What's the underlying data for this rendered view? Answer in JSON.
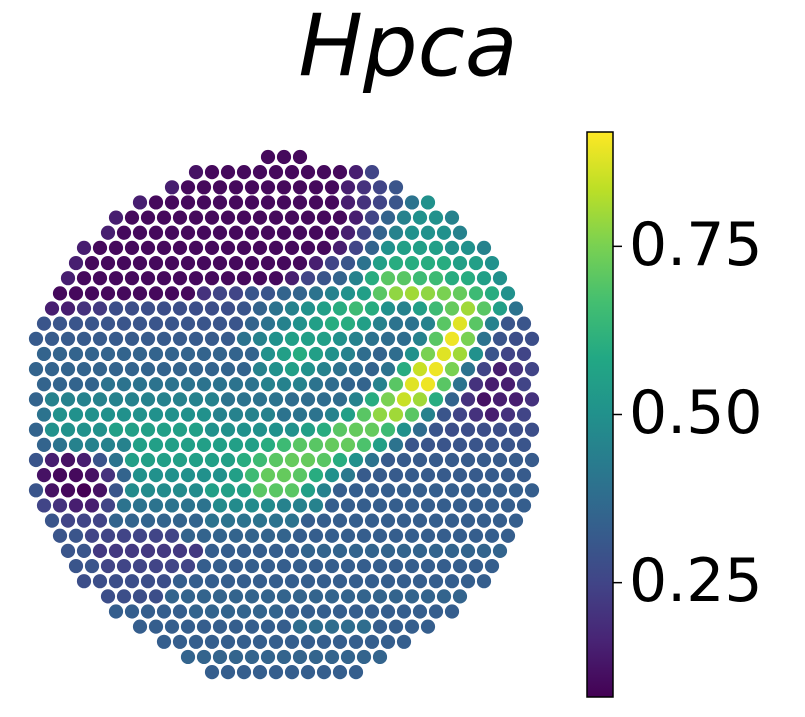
{
  "chart_data": {
    "type": "spatial",
    "title": "Hpca",
    "colormap": "viridis",
    "clim": [
      0.08,
      0.92
    ],
    "colorbar_ticks": [
      0.25,
      {
        "value": 0.5,
        "label": "0.50"
      },
      0.75
    ],
    "values": [
      [
        0.1,
        0.1,
        0.1
      ],
      [
        0.12,
        0.1,
        0.1,
        0.1,
        0.1,
        0.1,
        0.1,
        0.1,
        0.1,
        0.1,
        0.15,
        0.25
      ],
      [
        0.15,
        0.1,
        0.1,
        0.1,
        0.1,
        0.1,
        0.1,
        0.1,
        0.1,
        0.1,
        0.1,
        0.15,
        0.2,
        0.25,
        0.3
      ],
      [
        0.15,
        0.1,
        0.1,
        0.1,
        0.1,
        0.1,
        0.1,
        0.1,
        0.1,
        0.1,
        0.1,
        0.1,
        0.1,
        0.15,
        0.2,
        0.25,
        0.3,
        0.4,
        0.5
      ],
      [
        0.15,
        0.1,
        0.1,
        0.1,
        0.1,
        0.1,
        0.1,
        0.1,
        0.1,
        0.1,
        0.1,
        0.1,
        0.1,
        0.1,
        0.1,
        0.15,
        0.25,
        0.35,
        0.45,
        0.5,
        0.5,
        0.45
      ],
      [
        0.15,
        0.1,
        0.1,
        0.1,
        0.1,
        0.1,
        0.1,
        0.1,
        0.1,
        0.1,
        0.1,
        0.1,
        0.1,
        0.1,
        0.1,
        0.15,
        0.25,
        0.35,
        0.45,
        0.5,
        0.5,
        0.5,
        0.45
      ],
      [
        0.15,
        0.1,
        0.1,
        0.1,
        0.1,
        0.1,
        0.1,
        0.1,
        0.1,
        0.1,
        0.1,
        0.1,
        0.1,
        0.1,
        0.1,
        0.1,
        0.15,
        0.25,
        0.35,
        0.5,
        0.55,
        0.55,
        0.55,
        0.5,
        0.5,
        0.45
      ],
      [
        0.15,
        0.1,
        0.1,
        0.1,
        0.1,
        0.1,
        0.1,
        0.1,
        0.1,
        0.1,
        0.1,
        0.1,
        0.1,
        0.1,
        0.1,
        0.15,
        0.25,
        0.3,
        0.4,
        0.55,
        0.6,
        0.6,
        0.6,
        0.6,
        0.55,
        0.55,
        0.5
      ],
      [
        0.15,
        0.1,
        0.1,
        0.1,
        0.1,
        0.1,
        0.1,
        0.1,
        0.1,
        0.1,
        0.1,
        0.1,
        0.1,
        0.1,
        0.15,
        0.25,
        0.3,
        0.35,
        0.45,
        0.6,
        0.7,
        0.7,
        0.65,
        0.65,
        0.6,
        0.6,
        0.55,
        0.5
      ],
      [
        0.1,
        0.1,
        0.1,
        0.1,
        0.1,
        0.1,
        0.1,
        0.1,
        0.1,
        0.2,
        0.25,
        0.25,
        0.3,
        0.3,
        0.35,
        0.35,
        0.4,
        0.45,
        0.5,
        0.55,
        0.7,
        0.78,
        0.8,
        0.78,
        0.75,
        0.72,
        0.65,
        0.6,
        0.5
      ],
      [
        0.15,
        0.15,
        0.2,
        0.22,
        0.28,
        0.28,
        0.28,
        0.28,
        0.28,
        0.28,
        0.28,
        0.28,
        0.3,
        0.35,
        0.4,
        0.45,
        0.5,
        0.55,
        0.6,
        0.65,
        0.6,
        0.5,
        0.45,
        0.55,
        0.65,
        0.72,
        0.8,
        0.7,
        0.55,
        0.4
      ],
      [
        0.3,
        0.3,
        0.3,
        0.3,
        0.3,
        0.3,
        0.3,
        0.3,
        0.3,
        0.3,
        0.3,
        0.3,
        0.3,
        0.35,
        0.4,
        0.45,
        0.5,
        0.55,
        0.6,
        0.6,
        0.55,
        0.45,
        0.4,
        0.4,
        0.45,
        0.7,
        0.88,
        0.7,
        0.45,
        0.3,
        0.3
      ],
      [
        0.32,
        0.32,
        0.32,
        0.32,
        0.32,
        0.32,
        0.32,
        0.32,
        0.32,
        0.32,
        0.32,
        0.32,
        0.32,
        0.4,
        0.45,
        0.5,
        0.55,
        0.55,
        0.55,
        0.5,
        0.45,
        0.4,
        0.38,
        0.38,
        0.45,
        0.7,
        0.9,
        0.75,
        0.4,
        0.3,
        0.28,
        0.28
      ],
      [
        0.35,
        0.35,
        0.35,
        0.35,
        0.35,
        0.35,
        0.35,
        0.35,
        0.35,
        0.35,
        0.35,
        0.35,
        0.35,
        0.35,
        0.5,
        0.55,
        0.6,
        0.55,
        0.5,
        0.45,
        0.38,
        0.35,
        0.38,
        0.5,
        0.75,
        0.88,
        0.8,
        0.5,
        0.3,
        0.25,
        0.25
      ],
      [
        0.35,
        0.35,
        0.35,
        0.35,
        0.35,
        0.35,
        0.35,
        0.35,
        0.35,
        0.35,
        0.35,
        0.35,
        0.35,
        0.35,
        0.45,
        0.5,
        0.55,
        0.5,
        0.45,
        0.4,
        0.38,
        0.35,
        0.4,
        0.6,
        0.85,
        0.9,
        0.75,
        0.4,
        0.25,
        0.15,
        0.2,
        0.25
      ],
      [
        0.35,
        0.35,
        0.35,
        0.35,
        0.4,
        0.4,
        0.4,
        0.4,
        0.4,
        0.4,
        0.4,
        0.4,
        0.4,
        0.4,
        0.45,
        0.45,
        0.45,
        0.4,
        0.38,
        0.35,
        0.35,
        0.45,
        0.7,
        0.88,
        0.9,
        0.7,
        0.4,
        0.2,
        0.15,
        0.15,
        0.25
      ],
      [
        0.35,
        0.45,
        0.45,
        0.45,
        0.45,
        0.45,
        0.45,
        0.45,
        0.45,
        0.45,
        0.45,
        0.45,
        0.4,
        0.4,
        0.4,
        0.4,
        0.38,
        0.38,
        0.38,
        0.38,
        0.45,
        0.6,
        0.75,
        0.85,
        0.8,
        0.6,
        0.35,
        0.2,
        0.12,
        0.15,
        0.15,
        0.2
      ],
      [
        0.4,
        0.5,
        0.5,
        0.5,
        0.5,
        0.5,
        0.5,
        0.5,
        0.5,
        0.5,
        0.5,
        0.45,
        0.45,
        0.45,
        0.45,
        0.4,
        0.4,
        0.4,
        0.45,
        0.55,
        0.7,
        0.78,
        0.8,
        0.7,
        0.45,
        0.3,
        0.25,
        0.2,
        0.15,
        0.2,
        0.25
      ],
      [
        0.35,
        0.5,
        0.5,
        0.5,
        0.5,
        0.55,
        0.55,
        0.55,
        0.55,
        0.55,
        0.55,
        0.5,
        0.5,
        0.5,
        0.5,
        0.5,
        0.5,
        0.55,
        0.6,
        0.7,
        0.72,
        0.72,
        0.65,
        0.5,
        0.38,
        0.3,
        0.28,
        0.28,
        0.28,
        0.28,
        0.28,
        0.28
      ],
      [
        0.35,
        0.4,
        0.45,
        0.45,
        0.45,
        0.45,
        0.55,
        0.55,
        0.55,
        0.55,
        0.55,
        0.55,
        0.55,
        0.55,
        0.6,
        0.65,
        0.7,
        0.7,
        0.72,
        0.72,
        0.68,
        0.55,
        0.4,
        0.3,
        0.3,
        0.3,
        0.3,
        0.3,
        0.3,
        0.3,
        0.3
      ],
      [
        0.3,
        0.15,
        0.12,
        0.15,
        0.3,
        0.4,
        0.55,
        0.55,
        0.55,
        0.55,
        0.55,
        0.55,
        0.55,
        0.6,
        0.65,
        0.7,
        0.72,
        0.72,
        0.7,
        0.6,
        0.5,
        0.4,
        0.32,
        0.32,
        0.32,
        0.32,
        0.32,
        0.32,
        0.32,
        0.32,
        0.32,
        0.32
      ],
      [
        0.12,
        0.1,
        0.1,
        0.12,
        0.2,
        0.35,
        0.5,
        0.5,
        0.5,
        0.5,
        0.5,
        0.5,
        0.55,
        0.65,
        0.72,
        0.72,
        0.7,
        0.6,
        0.5,
        0.42,
        0.32,
        0.32,
        0.32,
        0.32,
        0.32,
        0.32,
        0.32,
        0.32,
        0.32,
        0.32,
        0.32
      ],
      [
        0.3,
        0.12,
        0.1,
        0.08,
        0.12,
        0.3,
        0.48,
        0.48,
        0.48,
        0.48,
        0.48,
        0.55,
        0.55,
        0.55,
        0.7,
        0.7,
        0.7,
        0.55,
        0.45,
        0.33,
        0.33,
        0.33,
        0.33,
        0.33,
        0.33,
        0.33,
        0.33,
        0.33,
        0.33,
        0.33,
        0.33,
        0.33
      ],
      [
        0.25,
        0.2,
        0.15,
        0.15,
        0.25,
        0.4,
        0.4,
        0.4,
        0.4,
        0.4,
        0.4,
        0.48,
        0.48,
        0.48,
        0.48,
        0.45,
        0.45,
        0.45,
        0.33,
        0.33,
        0.33,
        0.33,
        0.33,
        0.33,
        0.33,
        0.33,
        0.33,
        0.33,
        0.33,
        0.33,
        0.33
      ],
      [
        0.3,
        0.25,
        0.25,
        0.25,
        0.35,
        0.35,
        0.35,
        0.35,
        0.35,
        0.35,
        0.4,
        0.4,
        0.4,
        0.4,
        0.4,
        0.4,
        0.33,
        0.33,
        0.33,
        0.33,
        0.33,
        0.33,
        0.33,
        0.33,
        0.33,
        0.33,
        0.33,
        0.33,
        0.33,
        0.33
      ],
      [
        0.3,
        0.3,
        0.25,
        0.25,
        0.25,
        0.25,
        0.25,
        0.25,
        0.35,
        0.35,
        0.35,
        0.35,
        0.35,
        0.35,
        0.35,
        0.33,
        0.33,
        0.33,
        0.33,
        0.33,
        0.33,
        0.33,
        0.33,
        0.33,
        0.33,
        0.33,
        0.33,
        0.33,
        0.33
      ],
      [
        0.3,
        0.3,
        0.22,
        0.22,
        0.22,
        0.22,
        0.22,
        0.22,
        0.22,
        0.33,
        0.33,
        0.33,
        0.33,
        0.33,
        0.33,
        0.35,
        0.35,
        0.35,
        0.35,
        0.35,
        0.35,
        0.35,
        0.35,
        0.35,
        0.35,
        0.35,
        0.35,
        0.35
      ],
      [
        0.3,
        0.3,
        0.25,
        0.25,
        0.25,
        0.25,
        0.25,
        0.25,
        0.33,
        0.33,
        0.33,
        0.33,
        0.33,
        0.33,
        0.33,
        0.33,
        0.33,
        0.33,
        0.33,
        0.33,
        0.33,
        0.33,
        0.33,
        0.33,
        0.33,
        0.33,
        0.33
      ],
      [
        0.28,
        0.28,
        0.28,
        0.28,
        0.28,
        0.28,
        0.33,
        0.33,
        0.33,
        0.33,
        0.33,
        0.33,
        0.33,
        0.33,
        0.33,
        0.33,
        0.33,
        0.33,
        0.33,
        0.33,
        0.33,
        0.33,
        0.33,
        0.33,
        0.33,
        0.33
      ],
      [
        0.28,
        0.28,
        0.28,
        0.28,
        0.35,
        0.35,
        0.35,
        0.35,
        0.35,
        0.35,
        0.35,
        0.35,
        0.35,
        0.35,
        0.35,
        0.35,
        0.35,
        0.35,
        0.35,
        0.35,
        0.35,
        0.35,
        0.35
      ],
      [
        0.33,
        0.33,
        0.33,
        0.33,
        0.33,
        0.35,
        0.35,
        0.35,
        0.35,
        0.35,
        0.35,
        0.33,
        0.33,
        0.33,
        0.33,
        0.33,
        0.33,
        0.33,
        0.33,
        0.33,
        0.33,
        0.33
      ],
      [
        0.33,
        0.33,
        0.33,
        0.33,
        0.33,
        0.33,
        0.33,
        0.33,
        0.33,
        0.33,
        0.38,
        0.38,
        0.38,
        0.38,
        0.38,
        0.33,
        0.33,
        0.33,
        0.33
      ],
      [
        0.33,
        0.33,
        0.33,
        0.33,
        0.33,
        0.33,
        0.33,
        0.33,
        0.33,
        0.33,
        0.33,
        0.33,
        0.33,
        0.33,
        0.33,
        0.33
      ],
      [
        0.35,
        0.35,
        0.35,
        0.35,
        0.35,
        0.35,
        0.35,
        0.35,
        0.35,
        0.35,
        0.35,
        0.35,
        0.35
      ],
      [
        0.33,
        0.33,
        0.33,
        0.33,
        0.33,
        0.33,
        0.33,
        0.33,
        0.33,
        0.33
      ]
    ]
  }
}
